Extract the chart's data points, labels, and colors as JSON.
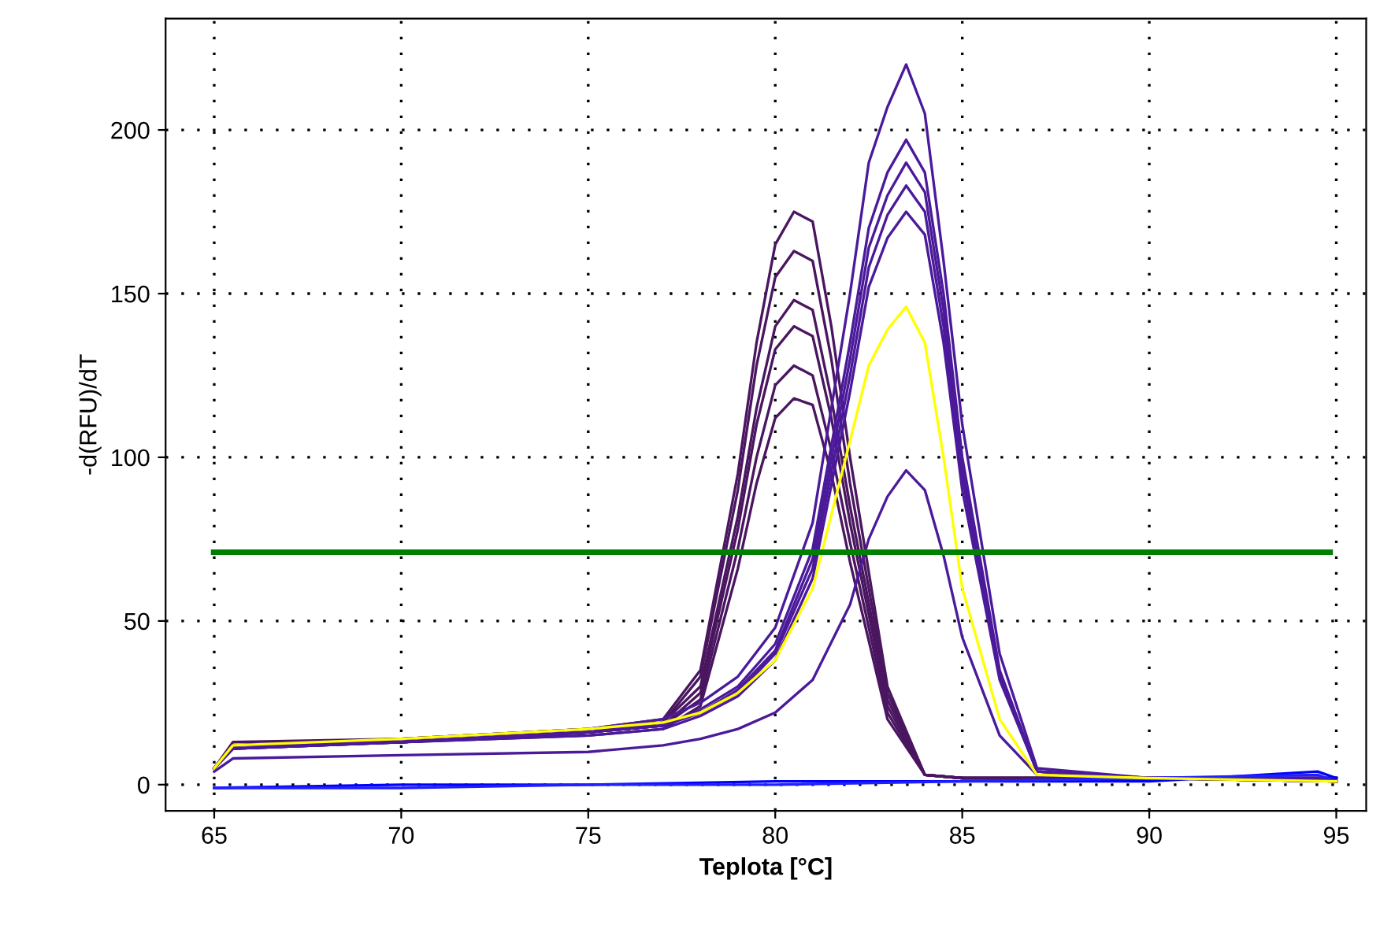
{
  "chart_data": {
    "type": "line",
    "xlabel": "Teplota [°C]",
    "ylabel": "-d(RFU)/dT",
    "xlim": [
      63.7,
      95.8
    ],
    "ylim": [
      -8,
      234
    ],
    "xticks": [
      65,
      70,
      75,
      80,
      85,
      90,
      95
    ],
    "yticks": [
      0,
      50,
      100,
      150,
      200
    ],
    "grid": true,
    "marker": "none",
    "line_style": "solid",
    "ref_lines": [
      {
        "axis": "y",
        "value": 71,
        "color": "#008000"
      }
    ],
    "series": [
      {
        "color": "#4a1660",
        "x": [
          65,
          65.5,
          70,
          75,
          77,
          78,
          79,
          79.5,
          80,
          80.5,
          81,
          81.5,
          82,
          83,
          84,
          85,
          90,
          95
        ],
        "values": [
          5,
          13,
          14,
          17,
          20,
          35,
          95,
          135,
          165,
          175,
          172,
          140,
          100,
          30,
          3,
          2,
          2,
          1
        ]
      },
      {
        "color": "#4a1660",
        "x": [
          65,
          65.5,
          70,
          75,
          77,
          78,
          79,
          79.5,
          80,
          80.5,
          81,
          81.5,
          82,
          83,
          84,
          85,
          90,
          95
        ],
        "values": [
          5,
          12,
          14,
          17,
          19,
          33,
          90,
          128,
          155,
          163,
          160,
          130,
          92,
          28,
          3,
          2,
          2,
          1
        ]
      },
      {
        "color": "#4a1660",
        "x": [
          65,
          65.5,
          70,
          75,
          77,
          78,
          79,
          79.5,
          80,
          80.5,
          81,
          81.5,
          82,
          83,
          84,
          85,
          90,
          95
        ],
        "values": [
          5,
          12,
          13,
          16,
          19,
          30,
          82,
          115,
          140,
          148,
          145,
          118,
          85,
          26,
          3,
          2,
          2,
          1
        ]
      },
      {
        "color": "#4a1660",
        "x": [
          65,
          65.5,
          70,
          75,
          77,
          78,
          79,
          79.5,
          80,
          80.5,
          81,
          81.5,
          82,
          83,
          84,
          85,
          90,
          95
        ],
        "values": [
          5,
          12,
          13,
          16,
          18,
          28,
          78,
          110,
          133,
          140,
          137,
          112,
          80,
          24,
          3,
          2,
          2,
          1
        ]
      },
      {
        "color": "#4a1660",
        "x": [
          65,
          65.5,
          70,
          75,
          77,
          78,
          79,
          79.5,
          80,
          80.5,
          81,
          81.5,
          82,
          83,
          84,
          85,
          90,
          95
        ],
        "values": [
          5,
          11,
          13,
          16,
          18,
          26,
          72,
          100,
          122,
          128,
          125,
          102,
          74,
          22,
          3,
          2,
          2,
          1
        ]
      },
      {
        "color": "#4a1660",
        "x": [
          65,
          65.5,
          70,
          75,
          77,
          78,
          79,
          79.5,
          80,
          80.5,
          81,
          81.5,
          82,
          83,
          84,
          85,
          90,
          95
        ],
        "values": [
          5,
          11,
          13,
          15,
          17,
          24,
          66,
          92,
          112,
          118,
          116,
          95,
          68,
          20,
          3,
          2,
          2,
          1
        ]
      },
      {
        "color": "#4b1a9a",
        "x": [
          65,
          65.5,
          70,
          75,
          77,
          78,
          79,
          80,
          81,
          82,
          82.5,
          83,
          83.5,
          84,
          84.5,
          85,
          86,
          87,
          90,
          95
        ],
        "values": [
          5,
          12,
          14,
          17,
          20,
          25,
          33,
          48,
          80,
          150,
          190,
          207,
          220,
          205,
          160,
          110,
          40,
          5,
          2,
          2
        ]
      },
      {
        "color": "#4b1a9a",
        "x": [
          65,
          65.5,
          70,
          75,
          77,
          78,
          79,
          80,
          81,
          82,
          82.5,
          83,
          83.5,
          84,
          84.5,
          85,
          86,
          87,
          90,
          95
        ],
        "values": [
          5,
          12,
          13,
          16,
          18,
          23,
          30,
          43,
          72,
          135,
          170,
          187,
          197,
          187,
          150,
          100,
          35,
          4,
          2,
          2
        ]
      },
      {
        "color": "#4b1a9a",
        "x": [
          65,
          65.5,
          70,
          75,
          77,
          78,
          79,
          80,
          81,
          82,
          82.5,
          83,
          83.5,
          84,
          84.5,
          85,
          86,
          87,
          90,
          95
        ],
        "values": [
          5,
          12,
          13,
          16,
          18,
          22,
          29,
          41,
          69,
          130,
          164,
          180,
          190,
          181,
          145,
          97,
          34,
          4,
          2,
          2
        ]
      },
      {
        "color": "#4b1a9a",
        "x": [
          65,
          65.5,
          70,
          75,
          77,
          78,
          79,
          80,
          81,
          82,
          82.5,
          83,
          83.5,
          84,
          84.5,
          85,
          86,
          87,
          90,
          95
        ],
        "values": [
          5,
          11,
          13,
          16,
          18,
          22,
          28,
          40,
          66,
          125,
          158,
          174,
          183,
          175,
          140,
          94,
          33,
          4,
          2,
          2
        ]
      },
      {
        "color": "#4b1a9a",
        "x": [
          65,
          65.5,
          70,
          75,
          77,
          78,
          79,
          80,
          81,
          82,
          82.5,
          83,
          83.5,
          84,
          84.5,
          85,
          86,
          87,
          90,
          95
        ],
        "values": [
          5,
          11,
          13,
          15,
          17,
          21,
          27,
          38,
          63,
          120,
          152,
          167,
          175,
          168,
          135,
          90,
          32,
          4,
          2,
          2
        ]
      },
      {
        "color": "#ffff00",
        "x": [
          65,
          65.5,
          70,
          75,
          77,
          78,
          79,
          80,
          81,
          82,
          82.5,
          83,
          83.5,
          84,
          84.5,
          85,
          86,
          87,
          90,
          95
        ],
        "values": [
          5,
          12,
          14,
          17,
          19,
          22,
          28,
          38,
          60,
          105,
          128,
          139,
          146,
          135,
          100,
          60,
          20,
          3,
          2,
          1
        ]
      },
      {
        "color": "#4b1a9a",
        "x": [
          65,
          65.5,
          70,
          75,
          77,
          78,
          79,
          80,
          81,
          82,
          82.5,
          83,
          83.5,
          84,
          84.5,
          85,
          86,
          87,
          90,
          95
        ],
        "values": [
          4,
          8,
          9,
          10,
          12,
          14,
          17,
          22,
          32,
          55,
          75,
          88,
          96,
          90,
          70,
          45,
          15,
          3,
          2,
          2
        ]
      },
      {
        "color": "#0000ff",
        "x": [
          65,
          70,
          75,
          80,
          85,
          90,
          94.5,
          95
        ],
        "values": [
          -1,
          0,
          0,
          1,
          1,
          1,
          4,
          2
        ]
      },
      {
        "color": "#2020ff",
        "x": [
          65,
          70,
          75,
          80,
          85,
          90,
          94.5,
          95
        ],
        "values": [
          -1,
          -1,
          0,
          0,
          1,
          2,
          3,
          1
        ]
      }
    ]
  }
}
